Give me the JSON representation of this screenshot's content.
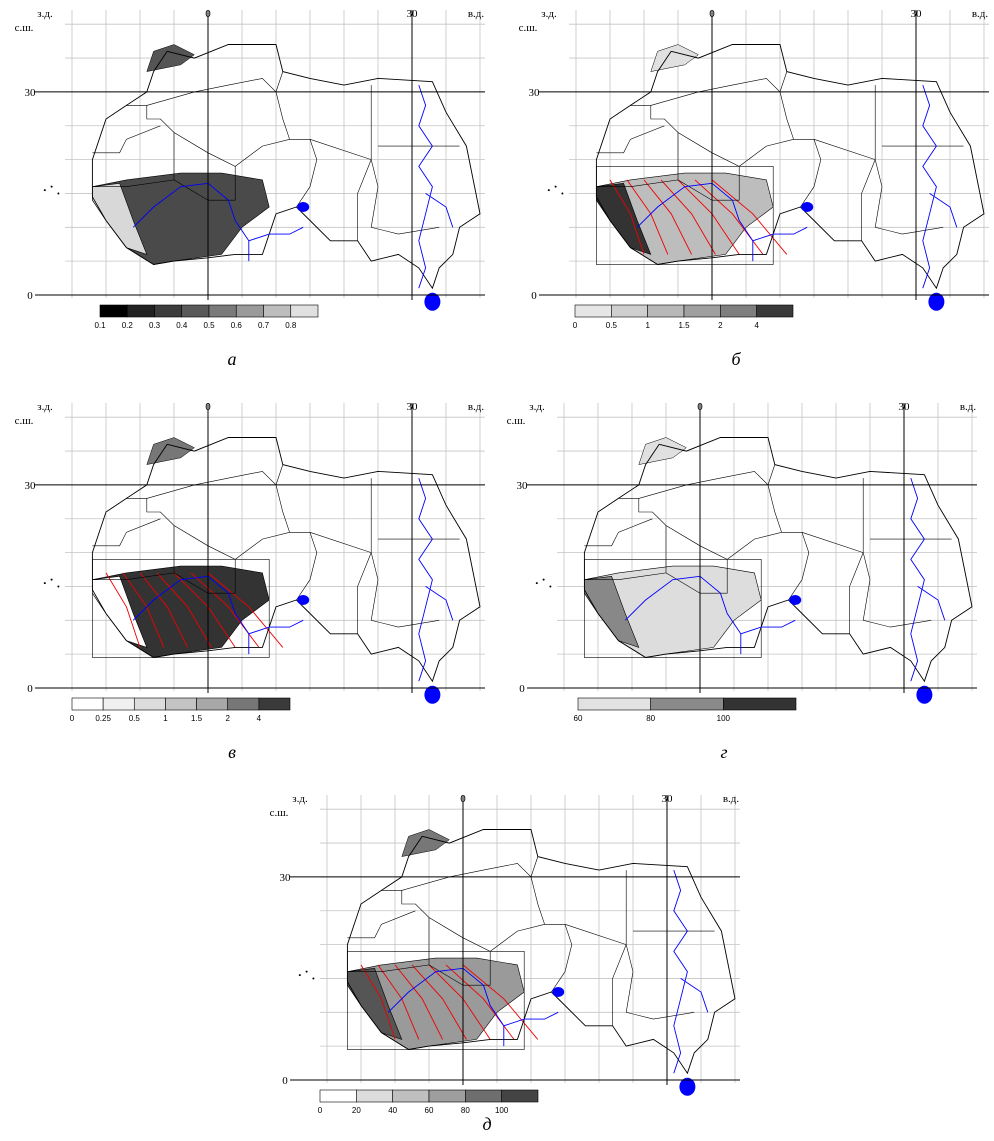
{
  "panels": [
    {
      "caption": "а",
      "west_label": "з.д.",
      "north_label": "с.ш.",
      "lon_labels": [
        "0",
        "30"
      ],
      "east_label": "в.д.",
      "lat_labels": [
        "30",
        "0"
      ],
      "legend": {
        "labels": [
          "0.1",
          "0.2",
          "0.3",
          "0.4",
          "0.5",
          "0.6",
          "0.7",
          "0.8"
        ],
        "colors": [
          "#000000",
          "#222222",
          "#3c3c3c",
          "#5a5a5a",
          "#7a7a7a",
          "#9a9a9a",
          "#bdbdbd",
          "#e0e0e0"
        ]
      }
    },
    {
      "caption": "б",
      "west_label": "з.д.",
      "north_label": "с.ш.",
      "lon_labels": [
        "0",
        "30"
      ],
      "east_label": "в.д.",
      "lat_labels": [
        "30",
        "0"
      ],
      "legend": {
        "labels": [
          "0",
          "0.5",
          "1",
          "1.5",
          "2",
          "4"
        ],
        "colors": [
          "#e6e6e6",
          "#cfcfcf",
          "#b8b8b8",
          "#a0a0a0",
          "#7f7f7f",
          "#3a3a3a"
        ]
      }
    },
    {
      "caption": "в",
      "west_label": "з.д.",
      "north_label": "с.ш.",
      "lon_labels": [
        "0",
        "30"
      ],
      "east_label": "в.д.",
      "lat_labels": [
        "30",
        "0"
      ],
      "legend": {
        "labels": [
          "0",
          "0.25",
          "0.5",
          "1",
          "1.5",
          "2",
          "4"
        ],
        "colors": [
          "#ffffff",
          "#f0f0f0",
          "#dcdcdc",
          "#c4c4c4",
          "#a8a8a8",
          "#777777",
          "#3a3a3a"
        ]
      }
    },
    {
      "caption": "г",
      "west_label": "з.д.",
      "north_label": "с.ш.",
      "lon_labels": [
        "0",
        "30"
      ],
      "east_label": "в.д.",
      "lat_labels": [
        "30",
        "0"
      ],
      "legend": {
        "labels": [
          "60",
          "80",
          "100"
        ],
        "colors": [
          "#e2e2e2",
          "#8a8a8a",
          "#333333"
        ]
      }
    },
    {
      "caption": "д",
      "west_label": "з.д.",
      "north_label": "с.ш.",
      "lon_labels": [
        "0",
        "30"
      ],
      "east_label": "в.д.",
      "lat_labels": [
        "30",
        "0"
      ],
      "legend": {
        "labels": [
          "0",
          "20",
          "40",
          "60",
          "80",
          "100"
        ],
        "colors": [
          "#ffffff",
          "#dcdcdc",
          "#bfbfbf",
          "#9e9e9e",
          "#6e6e6e",
          "#444444"
        ]
      }
    }
  ]
}
